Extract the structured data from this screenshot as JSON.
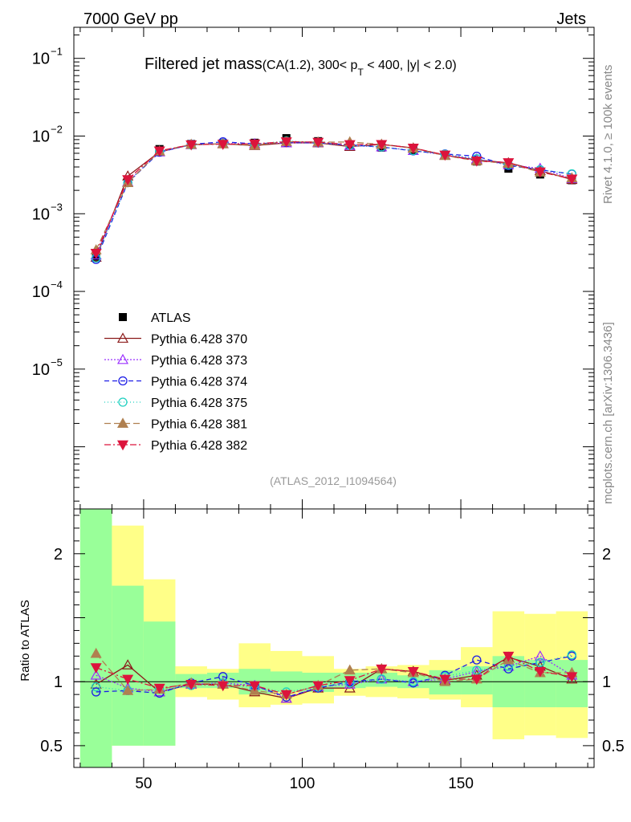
{
  "header": {
    "energy": "7000 GeV pp",
    "process": "Jets"
  },
  "title": {
    "main": "Filtered jet mass",
    "sub": "(CA(1.2), 300< p",
    "sub_subscript": "T",
    "sub_end": " < 400, |y| < 2.0)"
  },
  "side_labels": {
    "rivet": "Rivet 4.1.0, ≥ 100k events",
    "mcplots": "mcplots.cern.ch [arXiv:1306.3436]"
  },
  "analysis_id": "(ATLAS_2012_I1094564)",
  "ratio_ylabel": "Ratio to ATLAS",
  "colors": {
    "data": "#000000",
    "p370": "#8b1a1a",
    "p373": "#9b30ff",
    "p374": "#1c1ce6",
    "p375": "#20d0c0",
    "p381": "#b08050",
    "p382": "#dc143c",
    "band_inner": "#99ff99",
    "band_outer": "#ffff88"
  },
  "chart_data": {
    "type": "scatter",
    "x": [
      35,
      45,
      55,
      65,
      75,
      85,
      95,
      105,
      115,
      125,
      135,
      145,
      155,
      165,
      175,
      185
    ],
    "xlim": [
      28,
      192
    ],
    "x_ticks": [
      "50",
      "100",
      "150"
    ],
    "main_ylim_log10": [
      -6.8,
      -0.6
    ],
    "main_y_ticks": [
      {
        "base": "10",
        "exp": "−1"
      },
      {
        "base": "10",
        "exp": "−2"
      },
      {
        "base": "10",
        "exp": "−3"
      },
      {
        "base": "10",
        "exp": "−4"
      },
      {
        "base": "10",
        "exp": "−5"
      }
    ],
    "ratio_ylim": [
      0.33,
      2.35
    ],
    "ratio_y_ticks": [
      "0.5",
      "1",
      "2"
    ],
    "data": {
      "name": "ATLAS",
      "values": [
        0.00028,
        0.0027,
        0.0068,
        0.0079,
        0.0081,
        0.0082,
        0.0094,
        0.0086,
        0.0077,
        0.0071,
        0.0065,
        0.0056,
        0.0047,
        0.0038,
        0.0032,
        0.0027
      ],
      "band_inner_lo": [
        0.0,
        0.5,
        0.5,
        0.95,
        0.95,
        0.9,
        0.92,
        0.92,
        0.95,
        0.96,
        0.95,
        0.9,
        0.9,
        0.8,
        0.8,
        0.8
      ],
      "band_inner_hi": [
        2.35,
        1.75,
        1.47,
        1.06,
        1.07,
        1.1,
        1.08,
        1.07,
        1.07,
        1.07,
        1.05,
        1.09,
        1.12,
        1.2,
        1.17,
        1.17
      ],
      "band_outer_lo": [
        0.0,
        0.5,
        0.5,
        0.88,
        0.86,
        0.8,
        0.82,
        0.83,
        0.89,
        0.88,
        0.87,
        0.86,
        0.8,
        0.55,
        0.58,
        0.56
      ],
      "band_outer_hi": [
        2.35,
        2.22,
        1.8,
        1.12,
        1.1,
        1.3,
        1.24,
        1.2,
        1.1,
        1.12,
        1.13,
        1.17,
        1.27,
        1.55,
        1.53,
        1.55
      ]
    },
    "series": [
      {
        "name": "Pythia 6.428 370",
        "key": "p370",
        "marker": "triangle-open",
        "dash": "",
        "ratio": [
          0.98,
          1.13,
          0.92,
          0.98,
          0.98,
          0.92,
          0.87,
          0.95,
          0.95,
          1.1,
          1.08,
          1.01,
          1.05,
          1.19,
          1.12,
          1.02
        ]
      },
      {
        "name": "Pythia 6.428 373",
        "key": "p373",
        "marker": "triangle-open",
        "dash": "2,2",
        "ratio": [
          1.05,
          0.95,
          0.92,
          0.98,
          0.99,
          0.97,
          0.87,
          0.96,
          0.98,
          1.02,
          1.0,
          1.02,
          1.08,
          1.12,
          1.2,
          1.05
        ]
      },
      {
        "name": "Pythia 6.428 374",
        "key": "p374",
        "marker": "circle-open",
        "dash": "6,4",
        "ratio": [
          0.92,
          0.93,
          0.91,
          0.99,
          1.04,
          0.97,
          0.88,
          0.95,
          1.0,
          1.02,
          0.99,
          1.05,
          1.17,
          1.1,
          1.15,
          1.2
        ]
      },
      {
        "name": "Pythia 6.428 375",
        "key": "p375",
        "marker": "circle-open",
        "dash": "1,3",
        "ratio": [
          0.96,
          0.93,
          0.94,
          0.97,
          0.99,
          0.95,
          0.92,
          0.96,
          0.99,
          1.02,
          1.0,
          1.04,
          1.09,
          1.12,
          1.15,
          1.21
        ]
      },
      {
        "name": "Pythia 6.428 381",
        "key": "p381",
        "marker": "triangle-filled",
        "dash": "8,4",
        "ratio": [
          1.22,
          0.93,
          0.94,
          0.99,
          0.98,
          0.93,
          0.9,
          0.97,
          1.09,
          1.1,
          1.07,
          1.0,
          1.02,
          1.17,
          1.07,
          1.07
        ]
      },
      {
        "name": "Pythia 6.428 382",
        "key": "p382",
        "marker": "triangle-down-filled",
        "dash": "8,3,2,3",
        "ratio": [
          1.11,
          1.02,
          0.95,
          0.98,
          0.97,
          0.97,
          0.9,
          0.97,
          1.01,
          1.1,
          1.08,
          1.02,
          1.02,
          1.2,
          1.08,
          1.04
        ]
      }
    ]
  }
}
